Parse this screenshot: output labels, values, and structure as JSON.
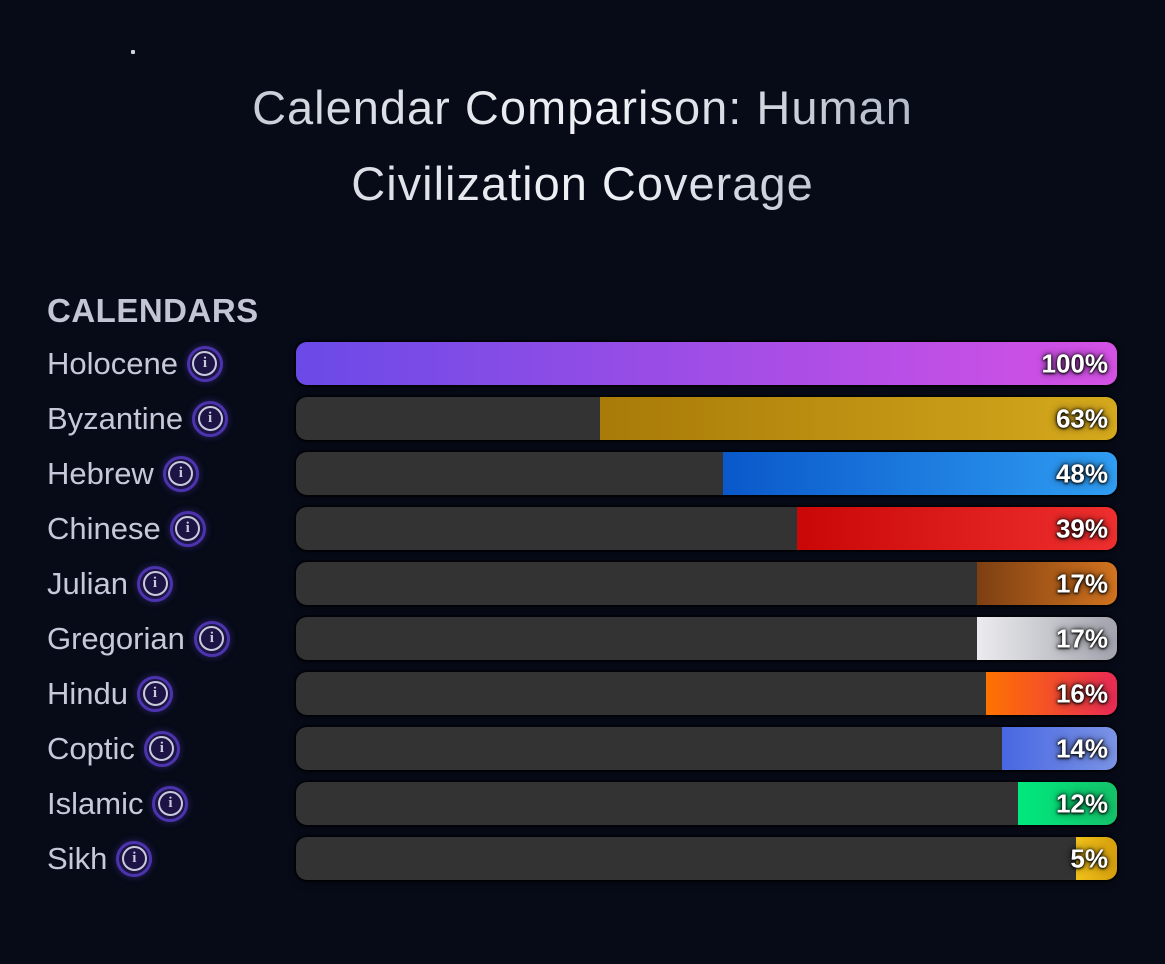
{
  "title": "Calendar Comparison: Human Civilization Coverage",
  "title_line1": "Calendar Comparison: Human",
  "title_line2": "Civilization Coverage",
  "section_header": "CALENDARS",
  "info_icon_glyph": "i",
  "colors": {
    "background": "#070b18",
    "track": "#333333",
    "label_text": "#c7c8d9",
    "header_text": "#c3c5d4",
    "value_text": "#ffffff",
    "info_icon_ring": "#4c34ae",
    "info_icon_fill": "#1d1445",
    "info_icon_glyph_color": "#c9cbdd"
  },
  "chart_data": {
    "type": "bar",
    "orientation": "horizontal",
    "anchor": "right",
    "title": "Calendar Comparison: Human Civilization Coverage",
    "xlabel": "",
    "ylabel": "CALENDARS",
    "unit": "%",
    "xlim": [
      0,
      100
    ],
    "grid": false,
    "legend": false,
    "categories": [
      "Holocene",
      "Byzantine",
      "Hebrew",
      "Chinese",
      "Julian",
      "Gregorian",
      "Hindu",
      "Coptic",
      "Islamic",
      "Sikh"
    ],
    "values": [
      100,
      63,
      48,
      39,
      17,
      17,
      16,
      14,
      12,
      5
    ],
    "value_labels": [
      "100%",
      "63%",
      "48%",
      "39%",
      "17%",
      "17%",
      "16%",
      "14%",
      "12%",
      "5%"
    ],
    "bar_gradients": [
      [
        "#6a4ae7",
        "#d551e5"
      ],
      [
        "#a87a08",
        "#d5a91d"
      ],
      [
        "#0a58ca",
        "#2f9df2"
      ],
      [
        "#c90707",
        "#ef2f2f"
      ],
      [
        "#7d3f12",
        "#d2731f"
      ],
      [
        "#ececef",
        "#a2a3ad"
      ],
      [
        "#ff7300",
        "#e82a55"
      ],
      [
        "#4867e2",
        "#7b94e6"
      ],
      [
        "#00e97e",
        "#14c169"
      ],
      [
        "#f0c11a",
        "#d59e0d"
      ]
    ]
  }
}
